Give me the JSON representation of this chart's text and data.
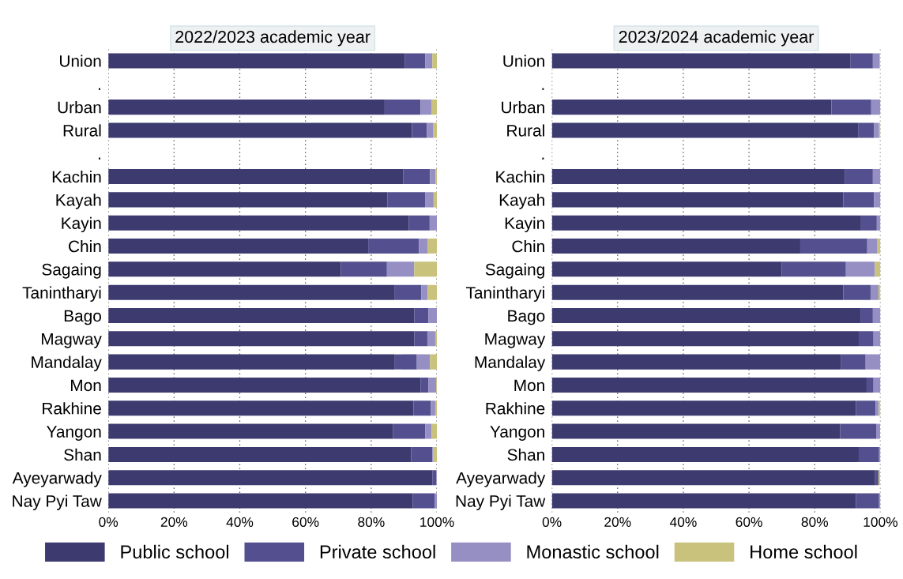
{
  "chart_data": [
    {
      "type": "bar",
      "orientation": "horizontal",
      "stacked": true,
      "title": "2022/2023 academic year",
      "categories": [
        "Union",
        ".",
        "Urban",
        "Rural",
        ".",
        "Kachin",
        "Kayah",
        "Kayin",
        "Chin",
        "Sagaing",
        "Tanintharyi",
        "Bago",
        "Magway",
        "Mandalay",
        "Mon",
        "Rakhine",
        "Yangon",
        "Shan",
        "Ayeyarwady",
        "Nay Pyi Taw"
      ],
      "series": [
        {
          "name": "Public school",
          "color": "#3d3a70",
          "values": [
            90.3,
            null,
            84.1,
            92.4,
            null,
            89.8,
            85.0,
            91.4,
            79.1,
            70.8,
            87.2,
            93.1,
            93.1,
            87.2,
            95.0,
            92.9,
            86.7,
            92.2,
            98.6,
            92.6
          ]
        },
        {
          "name": "Private school",
          "color": "#54508f",
          "values": [
            6.2,
            null,
            10.9,
            4.5,
            null,
            8.1,
            11.4,
            6.4,
            15.4,
            14.0,
            8.1,
            4.3,
            4.0,
            6.7,
            2.4,
            5.2,
            9.8,
            6.4,
            1.2,
            6.7
          ]
        },
        {
          "name": "Monastic school",
          "color": "#968fc4",
          "values": [
            2.1,
            null,
            3.3,
            1.9,
            null,
            1.7,
            2.6,
            2.2,
            2.6,
            8.3,
            1.9,
            2.6,
            2.4,
            4.0,
            2.4,
            1.4,
            1.9,
            0.2,
            0.2,
            0.7
          ]
        },
        {
          "name": "Home school",
          "color": "#c9c27d",
          "values": [
            1.4,
            null,
            1.7,
            1.2,
            null,
            0.4,
            1.0,
            0,
            2.9,
            6.9,
            2.8,
            0,
            0.5,
            2.1,
            0.2,
            0.5,
            1.6,
            1.2,
            0,
            0
          ]
        }
      ],
      "xlim": [
        0,
        100
      ],
      "xticks": [
        {
          "value": 0,
          "label": "0%"
        },
        {
          "value": 20,
          "label": "20%"
        },
        {
          "value": 40,
          "label": "40%"
        },
        {
          "value": 60,
          "label": "60%"
        },
        {
          "value": 80,
          "label": "80%"
        },
        {
          "value": 100,
          "label": "100%"
        }
      ],
      "grid": "x",
      "legend": "bottom"
    },
    {
      "type": "bar",
      "orientation": "horizontal",
      "stacked": true,
      "title": "2023/2024 academic year",
      "categories": [
        "Union",
        ".",
        "Urban",
        "Rural",
        ".",
        "Kachin",
        "Kayah",
        "Kayin",
        "Chin",
        "Sagaing",
        "Tanintharyi",
        "Bago",
        "Magway",
        "Mandalay",
        "Mon",
        "Rakhine",
        "Yangon",
        "Shan",
        "Ayeyarwady",
        "Nay Pyi Taw"
      ],
      "series": [
        {
          "name": "Public school",
          "color": "#3d3a70",
          "values": [
            90.8,
            null,
            85.1,
            93.2,
            null,
            89.1,
            88.7,
            94.1,
            75.6,
            70.0,
            88.7,
            93.9,
            93.4,
            87.9,
            95.8,
            92.5,
            87.7,
            93.4,
            98.4,
            92.5
          ]
        },
        {
          "name": "Private school",
          "color": "#54508f",
          "values": [
            6.9,
            null,
            12.1,
            4.8,
            null,
            8.6,
            9.3,
            4.8,
            20.4,
            19.5,
            8.3,
            3.8,
            4.5,
            7.6,
            2.1,
            6.0,
            11.0,
            6.2,
            1.0,
            7.1
          ]
        },
        {
          "name": "Monastic school",
          "color": "#968fc4",
          "values": [
            2.1,
            null,
            2.8,
            1.6,
            null,
            2.3,
            2.0,
            1.1,
            3.1,
            8.8,
            2.4,
            2.3,
            2.1,
            4.5,
            2.1,
            1.0,
            1.2,
            0.4,
            null,
            0.4
          ]
        },
        {
          "name": "Home school",
          "color": "#c9c27d",
          "values": [
            null,
            null,
            0,
            0.4,
            null,
            0,
            0,
            0,
            0.9,
            1.7,
            0.6,
            0,
            0,
            0,
            0,
            0.5,
            null,
            0,
            0.5,
            0
          ]
        }
      ],
      "xlim": [
        0,
        100
      ],
      "xticks": [
        {
          "value": 0,
          "label": "0%"
        },
        {
          "value": 20,
          "label": "20%"
        },
        {
          "value": 40,
          "label": "40%"
        },
        {
          "value": 60,
          "label": "60%"
        },
        {
          "value": 80,
          "label": "80%"
        },
        {
          "value": 100,
          "label": "100%"
        }
      ],
      "grid": "x",
      "legend": "bottom"
    }
  ]
}
